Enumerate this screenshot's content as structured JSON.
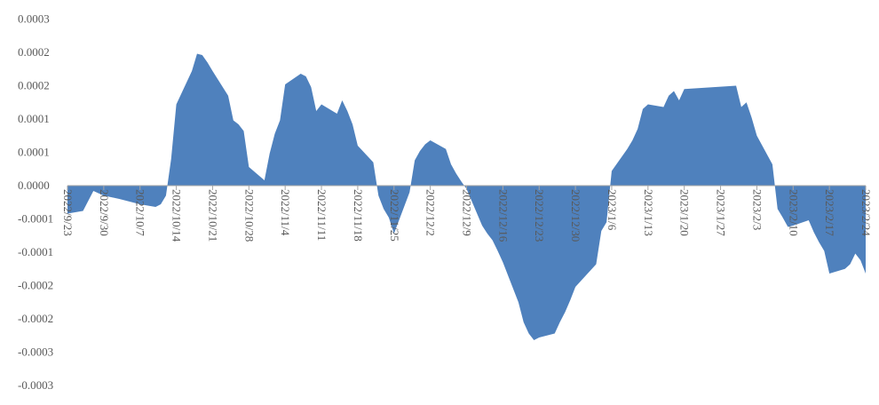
{
  "chart_data": {
    "type": "area",
    "title": "",
    "xlabel": "",
    "ylabel": "",
    "color": "#4F81BD",
    "axis_color": "#A6A6A6",
    "grid": false,
    "legend": "none",
    "ylim": [
      -0.0003,
      0.0003
    ],
    "y_tick_values": [
      0.00025,
      0.0002,
      0.00015,
      0.0001,
      5e-05,
      0.0,
      -5e-05,
      -0.0001,
      -0.00015,
      -0.0002,
      -0.00025,
      -0.0003
    ],
    "y_tick_labels": [
      "0.0003",
      "0.0002",
      "0.0002",
      "0.0001",
      "0.0001",
      "0.0000",
      "-0.0001",
      "-0.0001",
      "-0.0002",
      "-0.0002",
      "-0.0003",
      "-0.0003"
    ],
    "x_tick_labels": [
      "2022/9/23",
      "2022/9/30",
      "2022/10/7",
      "2022/10/14",
      "2022/10/21",
      "2022/10/28",
      "2022/11/4",
      "2022/11/11",
      "2022/11/18",
      "2022/11/25",
      "2022/12/2",
      "2022/12/9",
      "2022/12/16",
      "2022/12/23",
      "2022/12/30",
      "2023/1/6",
      "2023/1/13",
      "2023/1/20",
      "2023/1/27",
      "2023/2/3",
      "2023/2/10",
      "2023/2/17",
      "2023/2/24"
    ],
    "x": [
      "2022/9/23",
      "2022/9/26",
      "2022/9/28",
      "2022/9/30",
      "2022/10/3",
      "2022/10/7",
      "2022/10/10",
      "2022/10/11",
      "2022/10/12",
      "2022/10/13",
      "2022/10/14",
      "2022/10/17",
      "2022/10/18",
      "2022/10/19",
      "2022/10/20",
      "2022/10/21",
      "2022/10/24",
      "2022/10/25",
      "2022/10/26",
      "2022/10/27",
      "2022/10/28",
      "2022/10/31",
      "2022/11/1",
      "2022/11/2",
      "2022/11/3",
      "2022/11/4",
      "2022/11/7",
      "2022/11/8",
      "2022/11/9",
      "2022/11/10",
      "2022/11/11",
      "2022/11/14",
      "2022/11/15",
      "2022/11/16",
      "2022/11/17",
      "2022/11/18",
      "2022/11/21",
      "2022/11/22",
      "2022/11/23",
      "2022/11/24",
      "2022/11/25",
      "2022/11/28",
      "2022/11/29",
      "2022/11/30",
      "2022/12/1",
      "2022/12/2",
      "2022/12/5",
      "2022/12/6",
      "2022/12/7",
      "2022/12/8",
      "2022/12/9",
      "2022/12/12",
      "2022/12/13",
      "2022/12/14",
      "2022/12/15",
      "2022/12/16",
      "2022/12/19",
      "2022/12/20",
      "2022/12/21",
      "2022/12/22",
      "2022/12/23",
      "2022/12/26",
      "2022/12/27",
      "2022/12/28",
      "2022/12/29",
      "2022/12/30",
      "2023/1/3",
      "2023/1/4",
      "2023/1/5",
      "2023/1/6",
      "2023/1/9",
      "2023/1/10",
      "2023/1/11",
      "2023/1/12",
      "2023/1/13",
      "2023/1/16",
      "2023/1/17",
      "2023/1/18",
      "2023/1/19",
      "2023/1/20",
      "2023/1/30",
      "2023/1/31",
      "2023/2/1",
      "2023/2/2",
      "2023/2/3",
      "2023/2/6",
      "2023/2/7",
      "2023/2/8",
      "2023/2/9",
      "2023/2/10",
      "2023/2/13",
      "2023/2/14",
      "2023/2/15",
      "2023/2/16",
      "2023/2/17",
      "2023/2/20",
      "2023/2/21",
      "2023/2/22",
      "2023/2/23",
      "2023/2/24"
    ],
    "values": [
      -4.2e-05,
      -3.8e-05,
      -8e-06,
      -1.5e-05,
      -2e-05,
      -2.8e-05,
      -3.2e-05,
      -2.8e-05,
      -1.5e-05,
      4e-05,
      0.000122,
      0.000172,
      0.000198,
      0.000196,
      0.000185,
      0.000172,
      0.000135,
      9.8e-05,
      9.2e-05,
      8.2e-05,
      2.8e-05,
      8e-06,
      4.8e-05,
      7.8e-05,
      9.8e-05,
      0.000152,
      0.000168,
      0.000164,
      0.000148,
      0.000112,
      0.000122,
      0.000108,
      0.000128,
      0.000112,
      9.2e-05,
      6e-05,
      3.5e-05,
      -1.5e-05,
      -3.5e-05,
      -4.8e-05,
      -7.2e-05,
      -1e-05,
      3.8e-05,
      5.2e-05,
      6.2e-05,
      6.8e-05,
      5.5e-05,
      3.2e-05,
      1.8e-05,
      6e-06,
      -5e-06,
      -6e-05,
      -7.2e-05,
      -8.2e-05,
      -9.8e-05,
      -0.000115,
      -0.000175,
      -0.000205,
      -0.000222,
      -0.000232,
      -0.000228,
      -0.000222,
      -0.000205,
      -0.00019,
      -0.000172,
      -0.000152,
      -0.000118,
      -6.8e-05,
      -5.5e-05,
      2.2e-05,
      5.5e-05,
      6.8e-05,
      8.5e-05,
      0.000115,
      0.000122,
      0.000118,
      0.000135,
      0.000142,
      0.000128,
      0.000145,
      0.00015,
      0.000118,
      0.000125,
      0.000102,
      7.5e-05,
      3.2e-05,
      -3.5e-05,
      -4.8e-05,
      -6.2e-05,
      -6e-05,
      -5.2e-05,
      -7e-05,
      -8.5e-05,
      -9.8e-05,
      -0.000132,
      -0.000125,
      -0.000118,
      -0.000102,
      -0.000112,
      -0.000132
    ]
  }
}
